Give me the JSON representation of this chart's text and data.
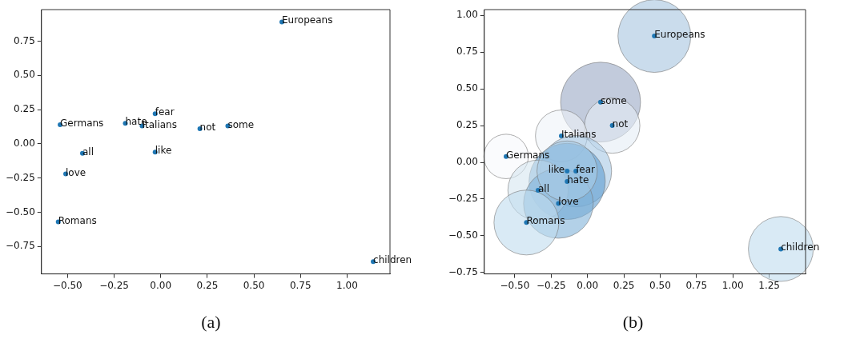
{
  "chart_data": [
    {
      "type": "scatter",
      "marker": "circle",
      "grid": false,
      "legend": false,
      "xlim": [
        -0.64,
        1.23
      ],
      "ylim": [
        -0.95,
        0.98
      ],
      "xticks": [
        {
          "value": -0.5,
          "label": "−0.50"
        },
        {
          "value": -0.25,
          "label": "−0.25"
        },
        {
          "value": 0,
          "label": "0.00"
        },
        {
          "value": 0.25,
          "label": "0.25"
        },
        {
          "value": 0.5,
          "label": "0.50"
        },
        {
          "value": 0.75,
          "label": "0.75"
        },
        {
          "value": 1,
          "label": "1.00"
        }
      ],
      "yticks": [
        {
          "value": -0.75,
          "label": "−0.75"
        },
        {
          "value": -0.5,
          "label": "−0.50"
        },
        {
          "value": -0.25,
          "label": "−0.25"
        },
        {
          "value": 0,
          "label": "0.00"
        },
        {
          "value": 0.25,
          "label": "0.25"
        },
        {
          "value": 0.5,
          "label": "0.50"
        },
        {
          "value": 0.75,
          "label": "0.75"
        }
      ],
      "series": [
        {
          "color": "#1f77b4",
          "x": [
            0.65,
            -0.03,
            -0.54,
            -0.19,
            -0.1,
            0.21,
            0.36,
            -0.42,
            -0.03,
            -0.51,
            -0.55,
            1.14
          ],
          "values": [
            0.89,
            0.22,
            0.14,
            0.15,
            0.13,
            0.11,
            0.13,
            -0.07,
            -0.06,
            -0.22,
            -0.57,
            -0.86
          ]
        }
      ],
      "annotations": [
        {
          "text": "Europeans",
          "x": 0.65,
          "y": 0.89
        },
        {
          "text": "fear",
          "x": -0.03,
          "y": 0.22
        },
        {
          "text": "Germans",
          "x": -0.54,
          "y": 0.14
        },
        {
          "text": "hate",
          "x": -0.19,
          "y": 0.15
        },
        {
          "text": "Italians",
          "x": -0.1,
          "y": 0.13
        },
        {
          "text": "not",
          "x": 0.21,
          "y": 0.11
        },
        {
          "text": "some",
          "x": 0.36,
          "y": 0.13
        },
        {
          "text": "all",
          "x": -0.42,
          "y": -0.07
        },
        {
          "text": "like",
          "x": -0.03,
          "y": -0.06
        },
        {
          "text": "love",
          "x": -0.51,
          "y": -0.22
        },
        {
          "text": "Romans",
          "x": -0.55,
          "y": -0.57
        },
        {
          "text": "children",
          "x": 1.14,
          "y": -0.86
        },
        "(a)"
      ]
    },
    {
      "type": "bubble",
      "marker": "circle",
      "grid": false,
      "legend": false,
      "xlim": [
        -0.71,
        1.5
      ],
      "ylim": [
        -0.76,
        1.04
      ],
      "xticks": [
        {
          "value": -0.5,
          "label": "−0.50"
        },
        {
          "value": -0.25,
          "label": "−0.25"
        },
        {
          "value": 0,
          "label": "0.00"
        },
        {
          "value": 0.25,
          "label": "0.25"
        },
        {
          "value": 0.5,
          "label": "0.50"
        },
        {
          "value": 0.75,
          "label": "0.75"
        },
        {
          "value": 1,
          "label": "1.00"
        },
        {
          "value": 1.25,
          "label": "1.25"
        }
      ],
      "yticks": [
        {
          "value": -0.75,
          "label": "−0.75"
        },
        {
          "value": -0.5,
          "label": "−0.50"
        },
        {
          "value": -0.25,
          "label": "−0.25"
        },
        {
          "value": 0,
          "label": "0.00"
        },
        {
          "value": 0.25,
          "label": "0.25"
        },
        {
          "value": 0.5,
          "label": "0.50"
        },
        {
          "value": 0.75,
          "label": "0.75"
        },
        {
          "value": 1,
          "label": "1.00"
        }
      ],
      "series": [
        {
          "x": [
            0.46,
            0.09,
            0.17,
            -0.18,
            -0.56,
            -0.08,
            -0.14,
            -0.34,
            -0.2,
            -0.42,
            1.33,
            -0.14
          ],
          "values": [
            0.86,
            0.41,
            0.25,
            0.18,
            0.04,
            -0.06,
            -0.13,
            -0.19,
            -0.28,
            -0.41,
            -0.59,
            -0.06
          ],
          "sizes": [
            0.83,
            1,
            0.48,
            0.42,
            0.31,
            0.8,
            0.91,
            0.57,
            0.76,
            0.66,
            0.66,
            0.57
          ],
          "colors": [
            "#a7c4e0",
            "#9aa9c4",
            "#e4ecf5",
            "#eef3f9",
            "#f7f9fc",
            "#a7c8e4",
            "#5b9bcf",
            "#d6e6f0",
            "#80b2d8",
            "#c0dcee",
            "#c0dcee",
            "#a9cbe6"
          ]
        },
        {
          "type": "scatter",
          "color": "#1f77b4",
          "x": [
            0.46,
            0.09,
            0.17,
            -0.18,
            -0.56,
            -0.14,
            -0.08,
            -0.14,
            -0.34,
            -0.2,
            -0.42,
            1.33
          ],
          "values": [
            0.86,
            0.41,
            0.25,
            0.18,
            0.04,
            -0.06,
            -0.06,
            -0.13,
            -0.19,
            -0.28,
            -0.41,
            -0.59
          ]
        }
      ],
      "annotations": [
        {
          "text": "Europeans",
          "x": 0.46,
          "y": 0.86
        },
        {
          "text": "some",
          "x": 0.09,
          "y": 0.41
        },
        {
          "text": "not",
          "x": 0.17,
          "y": 0.25
        },
        {
          "text": "Italians",
          "x": -0.18,
          "y": 0.18
        },
        {
          "text": "Germans",
          "x": -0.56,
          "y": 0.04
        },
        {
          "text": "like",
          "x": -0.14,
          "y": -0.06
        },
        {
          "text": "fear",
          "x": -0.08,
          "y": -0.06
        },
        {
          "text": "hate",
          "x": -0.14,
          "y": -0.13
        },
        {
          "text": "all",
          "x": -0.34,
          "y": -0.19
        },
        {
          "text": "love",
          "x": -0.2,
          "y": -0.28
        },
        {
          "text": "Romans",
          "x": -0.42,
          "y": -0.41
        },
        {
          "text": "children",
          "x": 1.33,
          "y": -0.59
        },
        "(b)"
      ]
    }
  ]
}
